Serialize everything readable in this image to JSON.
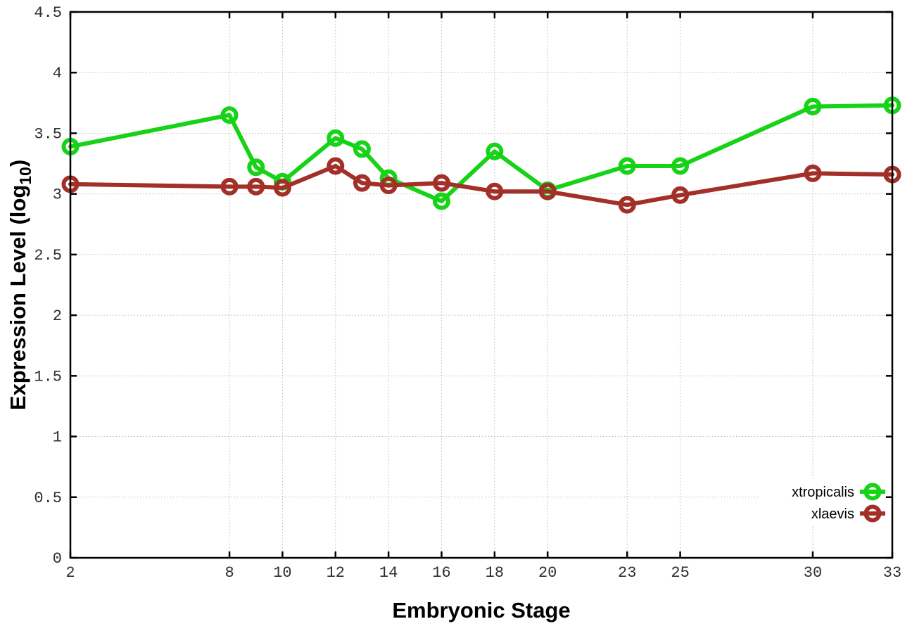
{
  "figure": {
    "background": "#ffffff",
    "plot_background": "#ffffff",
    "border_color": "#000000",
    "grid_color": "#b9b9b9",
    "tick_label_color": "#2e2e2e",
    "axis_label_color": "#000000"
  },
  "chart_data": {
    "type": "line",
    "title": "",
    "xlabel": "Embryonic Stage",
    "ylabel": "Expression Level (log10)",
    "ylabel_rich": {
      "prefix": "Expression Level (log",
      "subscript": "10",
      "suffix": ")"
    },
    "xlim": [
      2,
      33
    ],
    "ylim": [
      0,
      4.5
    ],
    "grid": true,
    "x_tick_values": [
      2,
      8,
      10,
      12,
      14,
      16,
      18,
      20,
      23,
      25,
      30,
      33
    ],
    "x_tick_labels": [
      "2",
      "8",
      "10",
      "12",
      "14",
      "16",
      "18",
      "20",
      "23",
      "25",
      "30",
      "33"
    ],
    "y_tick_values": [
      0,
      0.5,
      1,
      1.5,
      2,
      2.5,
      3,
      3.5,
      4,
      4.5
    ],
    "y_tick_labels": [
      "0",
      "0.5",
      "1",
      "1.5",
      "2",
      "2.5",
      "3",
      "3.5",
      "4",
      "4.5"
    ],
    "x": [
      2,
      8,
      9,
      10,
      12,
      13,
      14,
      16,
      18,
      20,
      23,
      25,
      30,
      33
    ],
    "series": [
      {
        "name": "xtropicalis",
        "color": "#17d317",
        "marker": "open-circle",
        "values": [
          3.39,
          3.65,
          3.22,
          3.1,
          3.46,
          3.37,
          3.13,
          2.94,
          3.35,
          3.03,
          3.23,
          3.23,
          3.72,
          3.73
        ]
      },
      {
        "name": "xlaevis",
        "color": "#a23029",
        "marker": "open-circle",
        "values": [
          3.08,
          3.06,
          3.06,
          3.05,
          3.23,
          3.09,
          3.07,
          3.09,
          3.02,
          3.02,
          2.91,
          2.99,
          3.17,
          3.16
        ]
      }
    ],
    "legend": {
      "position": "bottom-right",
      "entries": [
        "xtropicalis",
        "xlaevis"
      ]
    }
  }
}
